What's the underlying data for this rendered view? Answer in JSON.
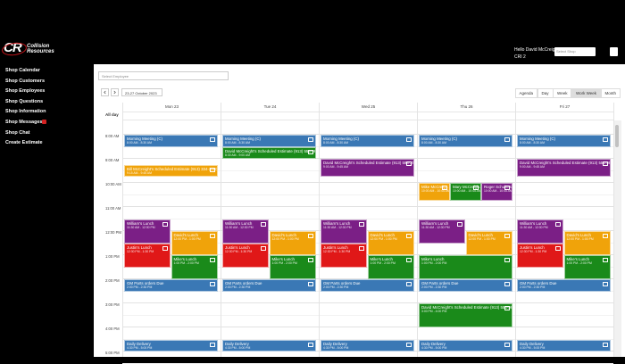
{
  "header": {
    "logo_mark": "CR",
    "logo_title": "Collision",
    "logo_subtitle": "Resources",
    "greeting": "Hello David McCreight",
    "account": "CRI 2",
    "shop_select": "Select Shop"
  },
  "sidebar": {
    "items": [
      "Shop Calendar",
      "Shop Customers",
      "Shop Employees",
      "Shop Questions",
      "Shop Information",
      "Shop Messages",
      "Shop Chat",
      "Create Estimate"
    ]
  },
  "toolbar": {
    "employee_select": "Select Employee",
    "date_range": "23-27 October 2023",
    "views": [
      "Agenda",
      "Day",
      "Week",
      "Work Week",
      "Month"
    ],
    "active_view": 3
  },
  "calendar": {
    "all_day_label": "All day",
    "time_labels": [
      "8:00 AM",
      "9:00 AM",
      "10:00 AM",
      "11:00 AM",
      "12:00 PM",
      "1:00 PM",
      "2:00 PM",
      "3:00 PM",
      "4:00 PM",
      "5:00 PM"
    ],
    "days": [
      {
        "label": "Mon 23",
        "events": [
          {
            "title": "Morning Meeting (C)",
            "time": "8:00 AM - 8:30 AM",
            "color": "#3a78b5"
          },
          {
            "title": "Bill McCreight's Scheduled Estimate (913) 334-2580",
            "time": "9:15 AM - 9:45 AM",
            "color": "#f0a30a"
          },
          {
            "title": "William's Lunch",
            "time": "11:30 AM - 12:30 PM",
            "color": "#7b1f86"
          },
          {
            "title": "David's Lunch",
            "time": "12:00 PM - 1:00 PM",
            "color": "#f0a30a"
          },
          {
            "title": "Justin's Lunch",
            "time": "12:30 PM - 1:30 PM",
            "color": "#e01818"
          },
          {
            "title": "Mike's Lunch",
            "time": "1:00 PM - 2:00 PM",
            "color": "#1a8a1a"
          },
          {
            "title": "GM Parts orders Due",
            "time": "2:00 PM - 2:30 PM",
            "color": "#3a78b5"
          },
          {
            "title": "Daily Delivery",
            "time": "4:30 PM - 5:00 PM",
            "color": "#3a78b5"
          }
        ]
      },
      {
        "label": "Tue 24",
        "events": [
          {
            "title": "Morning Meeting (C)",
            "time": "8:00 AM - 8:30 AM",
            "color": "#3a78b5"
          },
          {
            "title": "David McCreight's Scheduled Estimate (913) 555-9887",
            "time": "8:30 AM - 9:00 AM",
            "color": "#1a8a1a"
          },
          {
            "title": "William's Lunch",
            "time": "11:30 AM - 12:30 PM",
            "color": "#7b1f86"
          },
          {
            "title": "David's Lunch",
            "time": "12:00 PM - 1:00 PM",
            "color": "#f0a30a"
          },
          {
            "title": "Justin's Lunch",
            "time": "12:30 PM - 1:30 PM",
            "color": "#e01818"
          },
          {
            "title": "Mike's Lunch",
            "time": "1:00 PM - 2:00 PM",
            "color": "#1a8a1a"
          },
          {
            "title": "GM Parts orders Due",
            "time": "2:00 PM - 2:30 PM",
            "color": "#3a78b5"
          },
          {
            "title": "Daily Delivery",
            "time": "4:30 PM - 5:00 PM",
            "color": "#3a78b5"
          }
        ]
      },
      {
        "label": "Wed 25",
        "events": [
          {
            "title": "Morning Meeting (C)",
            "time": "8:00 AM - 8:30 AM",
            "color": "#3a78b5"
          },
          {
            "title": "David McCreight's Scheduled Estimate (913) 598-2580",
            "time": "9:00 AM - 9:45 AM",
            "color": "#7b1f86"
          },
          {
            "title": "William's Lunch",
            "time": "11:30 AM - 12:30 PM",
            "color": "#7b1f86"
          },
          {
            "title": "David's Lunch",
            "time": "12:00 PM - 1:00 PM",
            "color": "#f0a30a"
          },
          {
            "title": "Justin's Lunch",
            "time": "12:30 PM - 1:30 PM",
            "color": "#e01818"
          },
          {
            "title": "Mike's Lunch",
            "time": "1:00 PM - 2:00 PM",
            "color": "#1a8a1a"
          },
          {
            "title": "GM Parts orders Due",
            "time": "2:00 PM - 2:30 PM",
            "color": "#3a78b5"
          },
          {
            "title": "Daily Delivery",
            "time": "4:30 PM - 5:00 PM",
            "color": "#3a78b5"
          }
        ]
      },
      {
        "label": "Thu 26",
        "events": [
          {
            "title": "Morning Meeting (C)",
            "time": "8:00 AM - 8:30 AM",
            "color": "#3a78b5"
          },
          {
            "title": "Mike McCreig...",
            "time": "10:00 AM - 10:45 AM",
            "color": "#f0a30a"
          },
          {
            "title": "Mary McCreigh...",
            "time": "10:00 AM - 10:45 AM",
            "color": "#1a8a1a"
          },
          {
            "title": "Roger Schulte's...",
            "time": "10:00 AM - 10:45 AM",
            "color": "#7b1f86"
          },
          {
            "title": "William's Lunch",
            "time": "11:30 AM - 12:30 PM",
            "color": "#7b1f86"
          },
          {
            "title": "David's Lunch",
            "time": "12:00 PM - 1:00 PM",
            "color": "#f0a30a"
          },
          {
            "title": "Mike's Lunch",
            "time": "1:00 PM - 2:00 PM",
            "color": "#1a8a1a"
          },
          {
            "title": "GM Parts orders Due",
            "time": "2:00 PM - 2:30 PM",
            "color": "#3a78b5"
          },
          {
            "title": "David McCreight's Scheduled Estimate (913) 555-9887",
            "time": "3:00 PM - 4:00 PM",
            "color": "#1a8a1a"
          },
          {
            "title": "Daily Delivery",
            "time": "4:30 PM - 5:00 PM",
            "color": "#3a78b5"
          }
        ]
      },
      {
        "label": "Fri 27",
        "events": [
          {
            "title": "Morning Meeting (C)",
            "time": "8:00 AM - 8:30 AM",
            "color": "#3a78b5"
          },
          {
            "title": "David McCreight's Scheduled Estimate (913) 555-9887",
            "time": "9:00 AM - 9:45 AM",
            "color": "#7b1f86"
          },
          {
            "title": "William's Lunch",
            "time": "11:30 AM - 12:30 PM",
            "color": "#7b1f86"
          },
          {
            "title": "David's Lunch",
            "time": "12:00 PM - 1:00 PM",
            "color": "#f0a30a"
          },
          {
            "title": "Justin's Lunch",
            "time": "12:30 PM - 1:30 PM",
            "color": "#e01818"
          },
          {
            "title": "Mike's Lunch",
            "time": "1:00 PM - 2:00 PM",
            "color": "#1a8a1a"
          },
          {
            "title": "GM Parts orders Due",
            "time": "2:00 PM - 2:30 PM",
            "color": "#3a78b5"
          },
          {
            "title": "Daily Delivery",
            "time": "4:30 PM - 5:00 PM",
            "color": "#3a78b5"
          }
        ]
      }
    ]
  }
}
